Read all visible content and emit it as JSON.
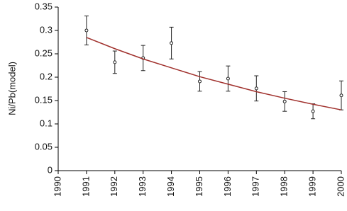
{
  "chart_data": {
    "type": "scatter",
    "y_label": "Ni/Pb(model)",
    "x": [
      1991,
      1992,
      1993,
      1994,
      1995,
      1996,
      1997,
      1998,
      1999,
      2000
    ],
    "series": [
      {
        "type": "scatter",
        "color": "#222222",
        "values": [
          0.3,
          0.232,
          0.241,
          0.273,
          0.191,
          0.197,
          0.176,
          0.148,
          0.127,
          0.161
        ],
        "errors": [
          0.031,
          0.024,
          0.027,
          0.034,
          0.021,
          0.027,
          0.027,
          0.021,
          0.016,
          0.031
        ]
      },
      {
        "type": "line",
        "color": "#a0302c",
        "values": [
          0.285,
          0.261,
          0.239,
          0.22,
          0.201,
          0.185,
          0.169,
          0.155,
          0.142,
          0.13
        ]
      }
    ],
    "xlim": [
      1990,
      2000
    ],
    "xticks": [
      1990,
      1991,
      1992,
      1993,
      1994,
      1995,
      1996,
      1997,
      1998,
      1999,
      2000
    ],
    "ylim": [
      0,
      0.35
    ],
    "yticks": [
      0,
      0.05,
      0.1,
      0.15,
      0.2,
      0.25,
      0.3,
      0.35
    ],
    "grid": false
  }
}
